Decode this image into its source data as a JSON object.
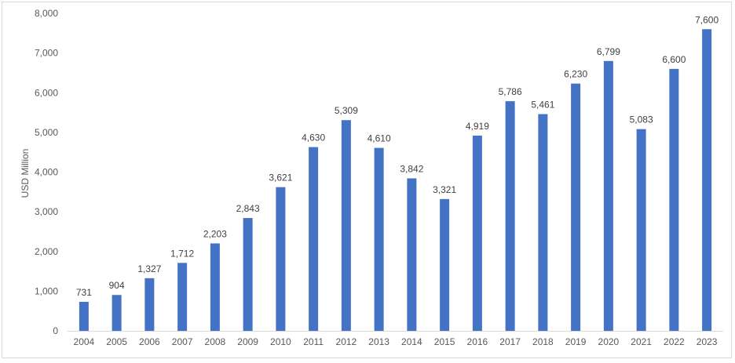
{
  "chart_data": {
    "type": "bar",
    "title": "",
    "xlabel": "",
    "ylabel": "USD Million",
    "ylim": [
      0,
      8000
    ],
    "yticks": [
      0,
      1000,
      2000,
      3000,
      4000,
      5000,
      6000,
      7000,
      8000
    ],
    "ytick_labels": [
      "0",
      "1,000",
      "2,000",
      "3,000",
      "4,000",
      "5,000",
      "6,000",
      "7,000",
      "8,000"
    ],
    "grid": false,
    "legend": "none",
    "bar_color": "#4472c4",
    "categories": [
      "2004",
      "2005",
      "2006",
      "2007",
      "2008",
      "2009",
      "2010",
      "2011",
      "2012",
      "2013",
      "2014",
      "2015",
      "2016",
      "2017",
      "2018",
      "2019",
      "2020",
      "2021",
      "2022",
      "2023"
    ],
    "values": [
      731,
      904,
      1327,
      1712,
      2203,
      2843,
      3621,
      4630,
      5309,
      4610,
      3842,
      3321,
      4919,
      5786,
      5461,
      6230,
      6799,
      5083,
      6600,
      7600
    ],
    "data_labels": [
      "731",
      "904",
      "1,327",
      "1,712",
      "2,203",
      "2,843",
      "3,621",
      "4,630",
      "5,309",
      "4,610",
      "3,842",
      "3,321",
      "4,919",
      "5,786",
      "5,461",
      "6,230",
      "6,799",
      "5,083",
      "6,600",
      "7,600"
    ]
  }
}
